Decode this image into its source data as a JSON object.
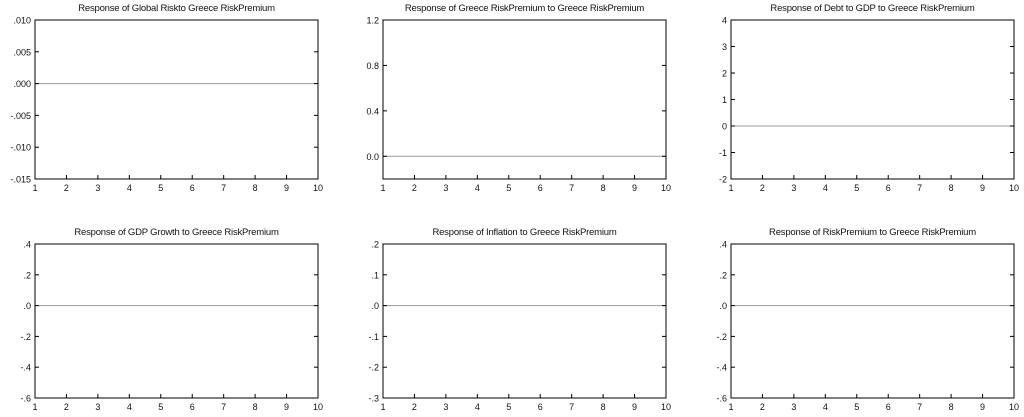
{
  "figure": {
    "background": "#ffffff",
    "axis_color": "#000000",
    "zero_line_color": "#9a9a9a"
  },
  "chart_data": [
    {
      "type": "line",
      "title": "Response of Global Riskto Greece RiskPremium",
      "x": [
        1,
        2,
        3,
        4,
        5,
        6,
        7,
        8,
        9,
        10
      ],
      "ylim": [
        -0.015,
        0.01
      ],
      "yticks": [
        ".010",
        ".005",
        ".000",
        "-.005",
        "-.010",
        "-.015"
      ],
      "ytick_values": [
        0.01,
        0.005,
        0,
        -0.005,
        -0.01,
        -0.015
      ],
      "xticks": [
        "1",
        "2",
        "3",
        "4",
        "5",
        "6",
        "7",
        "8",
        "9",
        "10"
      ],
      "reference_line": 0,
      "series": []
    },
    {
      "type": "line",
      "title": "Response of Greece RiskPremium to Greece RiskPremium",
      "x": [
        1,
        2,
        3,
        4,
        5,
        6,
        7,
        8,
        9,
        10
      ],
      "ylim": [
        -0.2,
        1.2
      ],
      "yticks": [
        "1.2",
        "0.8",
        "0.4",
        "0.0"
      ],
      "ytick_values": [
        1.2,
        0.8,
        0.4,
        0
      ],
      "xticks": [
        "1",
        "2",
        "3",
        "4",
        "5",
        "6",
        "7",
        "8",
        "9",
        "10"
      ],
      "reference_line": 0,
      "series": []
    },
    {
      "type": "line",
      "title": "Response of Debt to GDP to Greece RiskPremium",
      "x": [
        1,
        2,
        3,
        4,
        5,
        6,
        7,
        8,
        9,
        10
      ],
      "ylim": [
        -2,
        4
      ],
      "yticks": [
        "4",
        "3",
        "2",
        "1",
        "0",
        "-1",
        "-2"
      ],
      "ytick_values": [
        4,
        3,
        2,
        1,
        0,
        -1,
        -2
      ],
      "xticks": [
        "1",
        "2",
        "3",
        "4",
        "5",
        "6",
        "7",
        "8",
        "9",
        "10"
      ],
      "reference_line": 0,
      "series": []
    },
    {
      "type": "line",
      "title": "Response of GDP Growth to Greece RiskPremium",
      "x": [
        1,
        2,
        3,
        4,
        5,
        6,
        7,
        8,
        9,
        10
      ],
      "ylim": [
        -0.6,
        0.4
      ],
      "yticks": [
        ".4",
        ".2",
        ".0",
        "-.2",
        "-.4",
        "-.6"
      ],
      "ytick_values": [
        0.4,
        0.2,
        0,
        -0.2,
        -0.4,
        -0.6
      ],
      "xticks": [
        "1",
        "2",
        "3",
        "4",
        "5",
        "6",
        "7",
        "8",
        "9",
        "10"
      ],
      "reference_line": 0,
      "series": []
    },
    {
      "type": "line",
      "title": "Response of Inflation to Greece RiskPremium",
      "x": [
        1,
        2,
        3,
        4,
        5,
        6,
        7,
        8,
        9,
        10
      ],
      "ylim": [
        -0.3,
        0.2
      ],
      "yticks": [
        ".2",
        ".1",
        ".0",
        "-.1",
        "-.2",
        "-.3"
      ],
      "ytick_values": [
        0.2,
        0.1,
        0,
        -0.1,
        -0.2,
        -0.3
      ],
      "xticks": [
        "1",
        "2",
        "3",
        "4",
        "5",
        "6",
        "7",
        "8",
        "9",
        "10"
      ],
      "reference_line": 0,
      "series": []
    },
    {
      "type": "line",
      "title": "Response of RiskPremium to Greece RiskPremium",
      "x": [
        1,
        2,
        3,
        4,
        5,
        6,
        7,
        8,
        9,
        10
      ],
      "ylim": [
        -0.6,
        0.4
      ],
      "yticks": [
        ".4",
        ".2",
        ".0",
        "-.2",
        "-.4",
        "-.6"
      ],
      "ytick_values": [
        0.4,
        0.2,
        0,
        -0.2,
        -0.4,
        -0.6
      ],
      "xticks": [
        "1",
        "2",
        "3",
        "4",
        "5",
        "6",
        "7",
        "8",
        "9",
        "10"
      ],
      "reference_line": 0,
      "series": []
    }
  ]
}
